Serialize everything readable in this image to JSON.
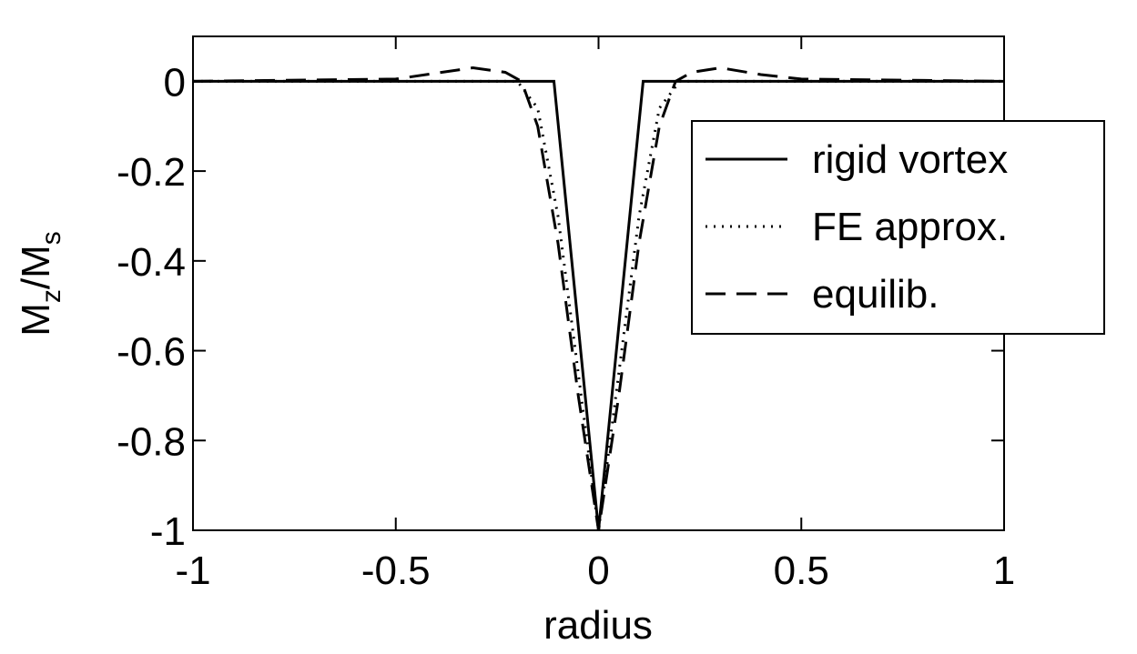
{
  "chart_data": {
    "type": "line",
    "xlabel": "radius",
    "ylabel": [
      "M",
      "z",
      "/M",
      "s"
    ],
    "xlim": [
      -1,
      1
    ],
    "ylim": [
      -1,
      0.1
    ],
    "xticks": [
      -1,
      -0.5,
      0,
      0.5,
      1
    ],
    "yticks": [
      -1,
      -0.8,
      -0.6,
      -0.4,
      -0.2,
      0
    ],
    "legend": "upper right",
    "series": [
      {
        "name": "rigid vortex",
        "color": "#000000",
        "style": "solid",
        "x": [
          -1,
          -0.11,
          0,
          0.11,
          1
        ],
        "values": [
          0,
          0,
          -1,
          0,
          0
        ]
      },
      {
        "name": "FE approx.",
        "color": "#000000",
        "style": "dotted",
        "x": [
          -1,
          -0.2,
          -0.15,
          -0.1,
          -0.05,
          0,
          0.05,
          0.1,
          0.15,
          0.2,
          1
        ],
        "values": [
          0,
          0,
          -0.06,
          -0.3,
          -0.65,
          -1,
          -0.65,
          -0.3,
          -0.06,
          0,
          0
        ]
      },
      {
        "name": "equilib.",
        "color": "#000000",
        "style": "dashed",
        "x": [
          -1,
          -0.5,
          -0.31,
          -0.23,
          -0.19,
          -0.15,
          -0.1,
          -0.05,
          0,
          0.05,
          0.1,
          0.15,
          0.19,
          0.23,
          0.3,
          0.4,
          0.5,
          1
        ],
        "values": [
          0,
          0.005,
          0.03,
          0.02,
          0,
          -0.1,
          -0.36,
          -0.7,
          -1,
          -0.7,
          -0.36,
          -0.1,
          0,
          0.02,
          0.03,
          0.015,
          0.005,
          0
        ]
      }
    ]
  }
}
